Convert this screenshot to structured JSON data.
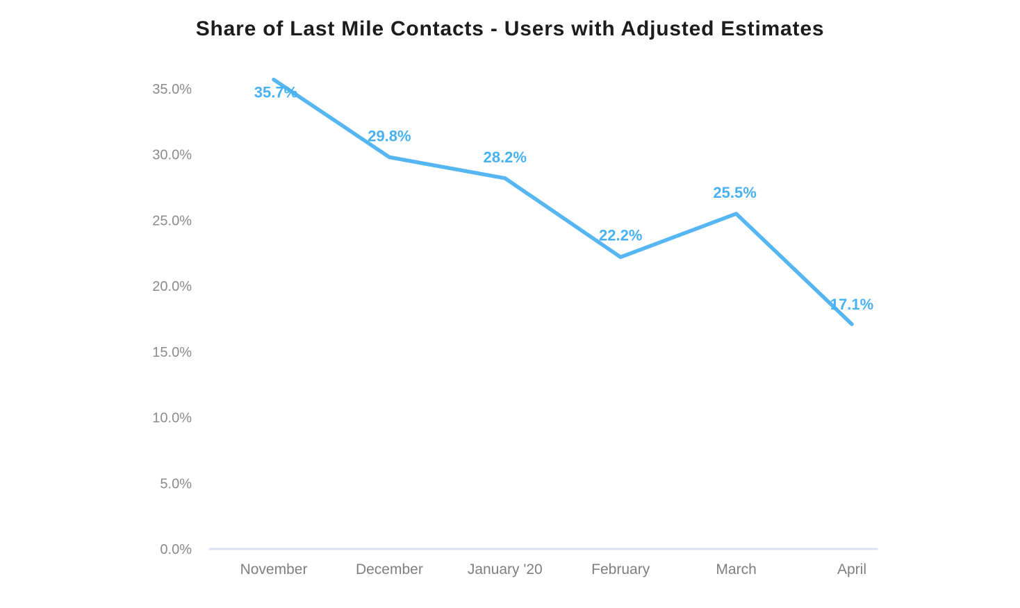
{
  "colors": {
    "background": "#ffffff",
    "title_text": "#1c1c1c",
    "line": "#55b6f2",
    "data_label": "#47b1f2",
    "baseline": "#dde2f3",
    "ytick_text": "#8b8b8b",
    "xtick_text": "#7f7f7f"
  },
  "chart_data": {
    "type": "line",
    "title": "Share of Last Mile Contacts - Users with Adjusted Estimates",
    "categories": [
      "November",
      "December",
      "January '20",
      "February",
      "March",
      "April"
    ],
    "values": [
      35.7,
      29.8,
      28.2,
      22.2,
      25.5,
      17.1
    ],
    "point_labels": [
      "35.7%",
      "29.8%",
      "28.2%",
      "22.2%",
      "25.5%",
      "17.1%"
    ],
    "ytick_labels": [
      "35.0%",
      "30.0%",
      "25.0%",
      "20.0%",
      "15.0%",
      "10.0%",
      "5.0%",
      "0.0%"
    ],
    "ytick_values": [
      35,
      30,
      25,
      20,
      15,
      10,
      5,
      0
    ],
    "ylim": [
      0,
      35
    ],
    "xlabel": "",
    "ylabel": "",
    "grid": false,
    "legend": "none"
  }
}
